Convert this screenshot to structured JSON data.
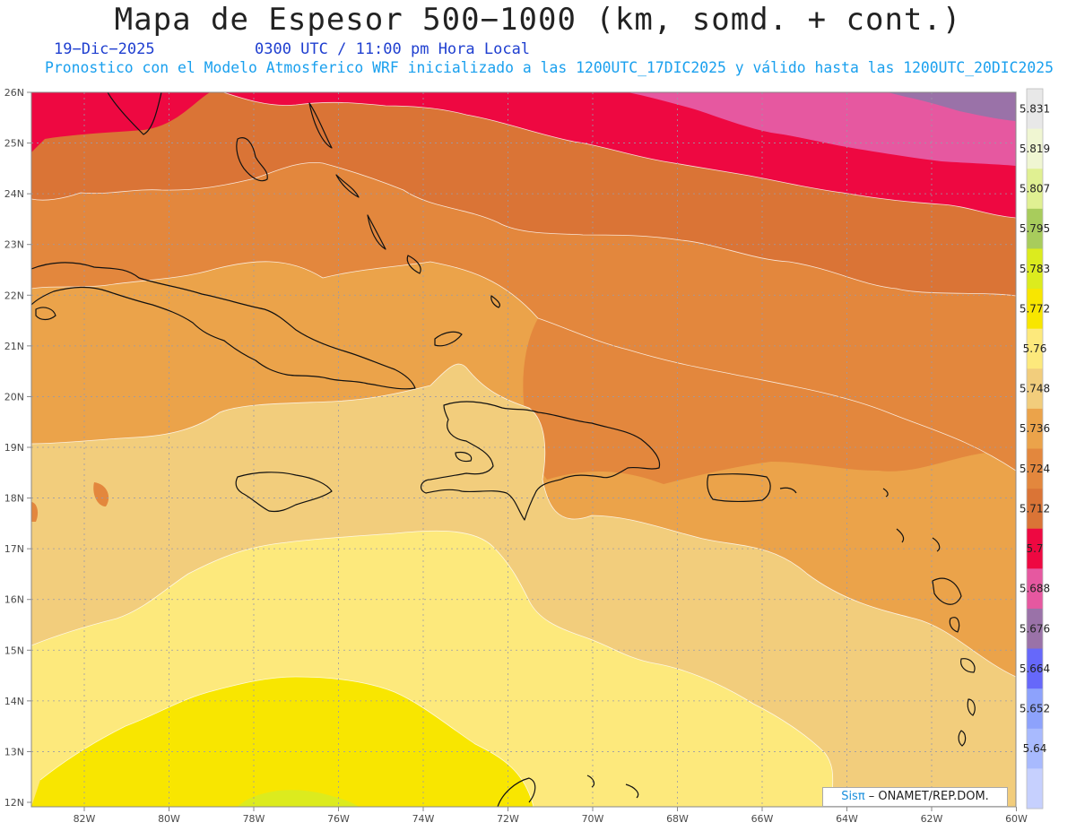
{
  "header": {
    "title": "Mapa de Espesor 500−1000 (km, somd. + cont.)",
    "date": "19−Dic−2025",
    "time": "0300 UTC / 11:00 pm Hora Local",
    "description": "Pronostico con el Modelo Atmosferico WRF inicializado a las 1200UTC_17DIC2025 y válido hasta las  1200UTC_20DIC2025"
  },
  "axes": {
    "lat_labels": [
      "26N",
      "25N",
      "24N",
      "23N",
      "22N",
      "21N",
      "20N",
      "19N",
      "18N",
      "17N",
      "16N",
      "15N",
      "14N",
      "13N",
      "12N"
    ],
    "lon_labels": [
      "82W",
      "80W",
      "78W",
      "76W",
      "74W",
      "72W",
      "70W",
      "68W",
      "66W",
      "64W",
      "62W",
      "60W"
    ]
  },
  "colorbar": {
    "labels": [
      "5.831",
      "5.819",
      "5.807",
      "5.795",
      "5.783",
      "5.772",
      "5.76",
      "5.748",
      "5.736",
      "5.724",
      "5.712",
      "5.7",
      "5.688",
      "5.676",
      "5.664",
      "5.652",
      "5.64"
    ],
    "colors": [
      "#e8e8e8",
      "#f0f6d2",
      "#e0f092",
      "#a8cc5c",
      "#dceb1e",
      "#f8e600",
      "#fde97c",
      "#f2cd7c",
      "#eba34a",
      "#e3873d",
      "#da7436",
      "#ee0841",
      "#e658a0",
      "#9a72a8",
      "#6668fa",
      "#8da2fc",
      "#a8bafe",
      "#c6d0fe"
    ]
  },
  "fields": {
    "colors": {
      "c5700": "#ee0841",
      "c5688": "#e658a0",
      "c5676": "#9a72a8",
      "c5712": "#da7436",
      "c5724": "#e3873d",
      "c5736": "#eba34a",
      "c5748": "#f2cd7c",
      "c5760": "#fde97c",
      "c5772": "#f8e600",
      "c5783": "#dceb1e"
    }
  },
  "credit": {
    "brand": "Sisπ",
    "text": " – ONAMET/REP.DOM."
  }
}
